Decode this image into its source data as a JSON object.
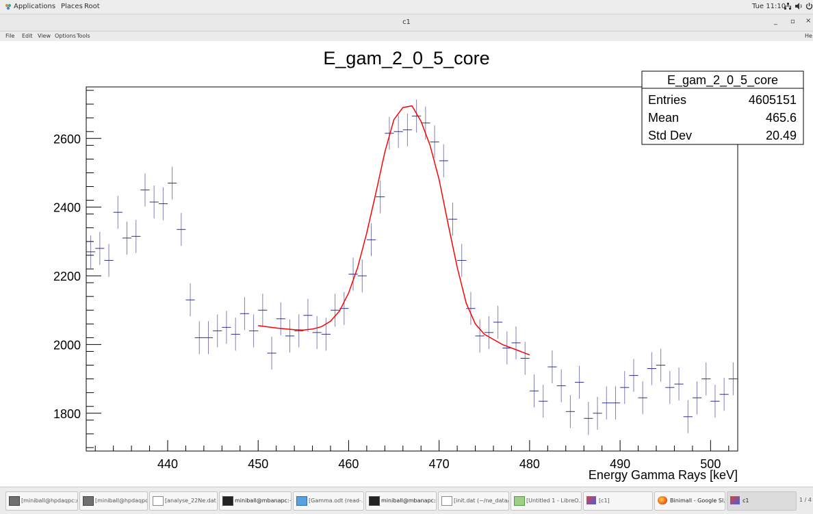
{
  "topbar": {
    "applications": "Applications",
    "places": "Places",
    "root": "Root",
    "clock": "Tue 11:10"
  },
  "window": {
    "title": "c1",
    "min": "_",
    "max": "▫",
    "close": "×"
  },
  "menu": {
    "file": "File",
    "edit": "Edit",
    "view": "View",
    "options": "Options",
    "tools": "Tools",
    "help": "He"
  },
  "stats": {
    "name": "E_gam_2_0_5_core",
    "rows": [
      {
        "label": "Entries",
        "value": "4605151"
      },
      {
        "label": "Mean",
        "value": "465.6"
      },
      {
        "label": "Std Dev",
        "value": "20.49"
      }
    ]
  },
  "taskbar": [
    {
      "label": "[miniball@hpdaqpc:/...",
      "icon": "terminal-icon"
    },
    {
      "label": "[miniball@hpdaqpc:/...",
      "icon": "terminal-icon"
    },
    {
      "label": "[analyse_22Ne.dat (...",
      "icon": "text-editor-icon"
    },
    {
      "label": "miniball@mbanapc:~...",
      "icon": "terminal-icon"
    },
    {
      "label": "[Gamma.odt (read-...",
      "icon": "writer-icon"
    },
    {
      "label": "miniball@mbanapc:~...",
      "icon": "terminal-icon"
    },
    {
      "label": "[init.dat (~/ne_data/...",
      "icon": "text-editor-icon"
    },
    {
      "label": "[Untitled 1 - LibreO...",
      "icon": "calc-icon"
    },
    {
      "label": "[c1]",
      "icon": "root-icon"
    },
    {
      "label": "Binimall - Google Sl...",
      "icon": "firefox-icon"
    },
    {
      "label": "c1",
      "icon": "root-icon"
    }
  ],
  "workspace": "1 / 4",
  "chart_data": {
    "type": "scatter",
    "title": "E_gam_2_0_5_core",
    "xlabel": "Energy Gamma Rays [keV]",
    "ylabel": "",
    "xlim": [
      431,
      503
    ],
    "ylim": [
      1690,
      2750
    ],
    "xticks": [
      440,
      450,
      460,
      470,
      480,
      490,
      500
    ],
    "yticks": [
      1800,
      2000,
      2200,
      2400,
      2600
    ],
    "grid": false,
    "legend": "top-right",
    "colors": {
      "histogram": "#2b2b8c",
      "fit": "#ff0000"
    },
    "series": [
      {
        "type": "histogram-with-errors",
        "bin_width": 1,
        "x": [
          431.5,
          432.5,
          433.5,
          434.5,
          435.5,
          436.5,
          437.5,
          438.5,
          439.5,
          440.5,
          441.5,
          442.5,
          443.5,
          444.5,
          445.5,
          446.5,
          447.5,
          448.5,
          449.5,
          450.5,
          451.5,
          452.5,
          453.5,
          454.5,
          455.5,
          456.5,
          457.5,
          458.5,
          459.5,
          460.5,
          461.5,
          462.5,
          463.5,
          464.5,
          465.5,
          466.5,
          467.5,
          468.5,
          469.5,
          470.5,
          471.5,
          472.5,
          473.5,
          474.5,
          475.5,
          476.5,
          477.5,
          478.5,
          479.5,
          480.5,
          481.5,
          482.5,
          483.5,
          484.5,
          485.5,
          486.5,
          487.5,
          488.5,
          489.5,
          490.5,
          491.5,
          492.5,
          493.5,
          494.5,
          495.5,
          496.5,
          497.5,
          498.5,
          499.5,
          500.5,
          501.5,
          502.5
        ],
        "y": [
          2270,
          2280,
          2245,
          2385,
          2310,
          2315,
          2450,
          2415,
          2410,
          2470,
          2335,
          2130,
          2020,
          2020,
          2040,
          2050,
          2030,
          2090,
          2040,
          2100,
          1975,
          2075,
          2025,
          2040,
          2085,
          2035,
          2030,
          2100,
          2105,
          2205,
          2200,
          2305,
          2430,
          2615,
          2620,
          2625,
          2665,
          2645,
          2590,
          2535,
          2365,
          2245,
          2105,
          2025,
          2035,
          2065,
          1990,
          2005,
          1960,
          1865,
          1835,
          1935,
          1880,
          1805,
          1890,
          1785,
          1800,
          1830,
          1830,
          1875,
          1910,
          1845,
          1930,
          1940,
          1875,
          1885,
          1790,
          1845,
          1900,
          1835,
          1855,
          1900
        ],
        "yerr": 48
      },
      {
        "type": "fit",
        "x": [
          450,
          452,
          454,
          455,
          456,
          457,
          458,
          459,
          460,
          461,
          462,
          463,
          464,
          465,
          466,
          467,
          468,
          469,
          470,
          471,
          472,
          473,
          474,
          475,
          476,
          477,
          478,
          479,
          480
        ],
        "y": [
          2055,
          2048,
          2043,
          2042,
          2045,
          2052,
          2068,
          2098,
          2150,
          2225,
          2325,
          2440,
          2560,
          2655,
          2690,
          2695,
          2650,
          2580,
          2480,
          2350,
          2225,
          2120,
          2060,
          2030,
          2015,
          2000,
          1990,
          1980,
          1970
        ]
      }
    ]
  }
}
